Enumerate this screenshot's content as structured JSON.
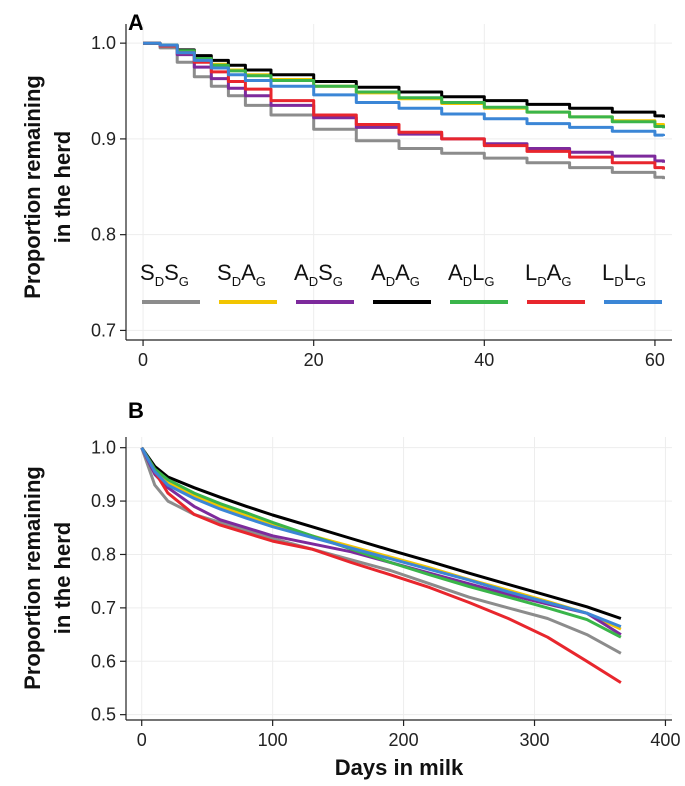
{
  "chart_data": [
    {
      "panel_label": "A",
      "type": "line",
      "ylabel_line1": "Proportion remaining",
      "ylabel_line2": "in the herd",
      "xlabel": "",
      "xlim": [
        -2,
        62
      ],
      "ylim": [
        0.69,
        1.02
      ],
      "xticks": [
        0,
        20,
        40,
        60
      ],
      "yticks": [
        0.7,
        0.8,
        0.9,
        1.0
      ],
      "xtick_labels": [
        "0",
        "20",
        "40",
        "60"
      ],
      "ytick_labels": [
        "0.7",
        "0.8",
        "0.9",
        "1.0"
      ],
      "grid": true,
      "legend_position": "bottom-inside",
      "series": [
        {
          "name": "SDSG",
          "label_parts": [
            "S",
            "D",
            "S",
            "G"
          ],
          "color": "#8c8c8c",
          "x": [
            0,
            2,
            4,
            6,
            8,
            10,
            12,
            15,
            20,
            25,
            30,
            35,
            40,
            45,
            50,
            55,
            60,
            61
          ],
          "y": [
            1.0,
            0.995,
            0.98,
            0.965,
            0.955,
            0.945,
            0.935,
            0.925,
            0.91,
            0.898,
            0.89,
            0.885,
            0.88,
            0.875,
            0.87,
            0.865,
            0.86,
            0.858
          ]
        },
        {
          "name": "SDAG",
          "label_parts": [
            "S",
            "D",
            "A",
            "G"
          ],
          "color": "#f2c500",
          "x": [
            0,
            2,
            4,
            6,
            8,
            10,
            12,
            15,
            20,
            25,
            30,
            35,
            40,
            45,
            50,
            55,
            60,
            61
          ],
          "y": [
            1.0,
            0.998,
            0.992,
            0.985,
            0.978,
            0.972,
            0.967,
            0.962,
            0.955,
            0.948,
            0.942,
            0.937,
            0.932,
            0.928,
            0.923,
            0.919,
            0.915,
            0.913
          ]
        },
        {
          "name": "ADSG",
          "label_parts": [
            "A",
            "D",
            "S",
            "G"
          ],
          "color": "#7d2a9c",
          "x": [
            0,
            2,
            4,
            6,
            8,
            10,
            12,
            15,
            20,
            25,
            30,
            35,
            40,
            45,
            50,
            55,
            60,
            61
          ],
          "y": [
            1.0,
            0.997,
            0.988,
            0.975,
            0.963,
            0.953,
            0.945,
            0.935,
            0.922,
            0.912,
            0.905,
            0.9,
            0.895,
            0.89,
            0.886,
            0.882,
            0.877,
            0.875
          ]
        },
        {
          "name": "ADAG",
          "label_parts": [
            "A",
            "D",
            "A",
            "G"
          ],
          "color": "#000000",
          "x": [
            0,
            2,
            4,
            6,
            8,
            10,
            12,
            15,
            20,
            25,
            30,
            35,
            40,
            45,
            50,
            55,
            60,
            61
          ],
          "y": [
            1.0,
            0.998,
            0.993,
            0.987,
            0.982,
            0.977,
            0.972,
            0.967,
            0.96,
            0.954,
            0.949,
            0.944,
            0.94,
            0.936,
            0.932,
            0.928,
            0.924,
            0.922
          ]
        },
        {
          "name": "ADLG",
          "label_parts": [
            "A",
            "D",
            "L",
            "G"
          ],
          "color": "#3ab54a",
          "x": [
            0,
            2,
            4,
            6,
            8,
            10,
            12,
            15,
            20,
            25,
            30,
            35,
            40,
            45,
            50,
            55,
            60,
            61
          ],
          "y": [
            1.0,
            0.998,
            0.992,
            0.984,
            0.977,
            0.971,
            0.966,
            0.961,
            0.955,
            0.949,
            0.943,
            0.938,
            0.933,
            0.928,
            0.923,
            0.918,
            0.913,
            0.911
          ]
        },
        {
          "name": "LDAG",
          "label_parts": [
            "L",
            "D",
            "A",
            "G"
          ],
          "color": "#e8262d",
          "x": [
            0,
            2,
            4,
            6,
            8,
            10,
            12,
            15,
            20,
            25,
            30,
            35,
            40,
            45,
            50,
            55,
            60,
            61
          ],
          "y": [
            1.0,
            0.997,
            0.99,
            0.98,
            0.97,
            0.96,
            0.952,
            0.94,
            0.925,
            0.915,
            0.907,
            0.9,
            0.893,
            0.887,
            0.881,
            0.875,
            0.87,
            0.868
          ]
        },
        {
          "name": "LDLG",
          "label_parts": [
            "L",
            "D",
            "L",
            "G"
          ],
          "color": "#3b86d6",
          "x": [
            0,
            2,
            4,
            6,
            8,
            10,
            12,
            15,
            20,
            25,
            30,
            35,
            40,
            45,
            50,
            55,
            60,
            61
          ],
          "y": [
            1.0,
            0.998,
            0.99,
            0.982,
            0.974,
            0.967,
            0.961,
            0.955,
            0.946,
            0.938,
            0.932,
            0.926,
            0.921,
            0.916,
            0.912,
            0.908,
            0.904,
            0.903
          ]
        }
      ]
    },
    {
      "panel_label": "B",
      "type": "line",
      "ylabel_line1": "Proportion remaining",
      "ylabel_line2": "in the herd",
      "xlabel": "Days in milk",
      "xlim": [
        -12,
        405
      ],
      "ylim": [
        0.49,
        1.02
      ],
      "xticks": [
        0,
        100,
        200,
        300,
        400
      ],
      "yticks": [
        0.5,
        0.6,
        0.7,
        0.8,
        0.9,
        1.0
      ],
      "xtick_labels": [
        "0",
        "100",
        "200",
        "300",
        "400"
      ],
      "ytick_labels": [
        "0.5",
        "0.6",
        "0.7",
        "0.8",
        "0.9",
        "1.0"
      ],
      "grid": true,
      "series": [
        {
          "name": "SDSG",
          "color": "#8c8c8c",
          "x": [
            0,
            10,
            20,
            40,
            60,
            80,
            100,
            130,
            160,
            190,
            220,
            250,
            280,
            310,
            340,
            366
          ],
          "y": [
            1.0,
            0.93,
            0.9,
            0.875,
            0.86,
            0.845,
            0.83,
            0.81,
            0.79,
            0.77,
            0.745,
            0.72,
            0.7,
            0.68,
            0.65,
            0.615
          ]
        },
        {
          "name": "SDAG",
          "color": "#f2c500",
          "x": [
            0,
            10,
            20,
            40,
            60,
            80,
            100,
            130,
            160,
            190,
            220,
            250,
            280,
            310,
            340,
            366
          ],
          "y": [
            1.0,
            0.96,
            0.935,
            0.91,
            0.89,
            0.872,
            0.855,
            0.835,
            0.815,
            0.795,
            0.775,
            0.753,
            0.733,
            0.712,
            0.69,
            0.66
          ]
        },
        {
          "name": "ADSG",
          "color": "#7d2a9c",
          "x": [
            0,
            10,
            20,
            40,
            60,
            80,
            100,
            130,
            160,
            190,
            220,
            250,
            280,
            310,
            340,
            366
          ],
          "y": [
            1.0,
            0.95,
            0.925,
            0.89,
            0.865,
            0.85,
            0.835,
            0.82,
            0.805,
            0.785,
            0.765,
            0.745,
            0.725,
            0.707,
            0.69,
            0.65
          ]
        },
        {
          "name": "ADAG",
          "color": "#000000",
          "x": [
            0,
            10,
            20,
            40,
            60,
            80,
            100,
            130,
            160,
            190,
            220,
            250,
            280,
            310,
            340,
            366
          ],
          "y": [
            1.0,
            0.965,
            0.945,
            0.925,
            0.907,
            0.89,
            0.874,
            0.852,
            0.83,
            0.808,
            0.787,
            0.765,
            0.744,
            0.723,
            0.702,
            0.68
          ]
        },
        {
          "name": "ADLG",
          "color": "#3ab54a",
          "x": [
            0,
            10,
            20,
            40,
            60,
            80,
            100,
            130,
            160,
            190,
            220,
            250,
            280,
            310,
            340,
            366
          ],
          "y": [
            1.0,
            0.96,
            0.94,
            0.915,
            0.895,
            0.878,
            0.86,
            0.835,
            0.81,
            0.785,
            0.762,
            0.74,
            0.72,
            0.7,
            0.678,
            0.645
          ]
        },
        {
          "name": "LDAG",
          "color": "#e8262d",
          "x": [
            0,
            10,
            20,
            40,
            60,
            80,
            100,
            130,
            160,
            190,
            220,
            250,
            280,
            310,
            340,
            366
          ],
          "y": [
            1.0,
            0.955,
            0.915,
            0.875,
            0.855,
            0.84,
            0.825,
            0.81,
            0.785,
            0.762,
            0.738,
            0.71,
            0.68,
            0.645,
            0.6,
            0.56
          ]
        },
        {
          "name": "LDLG",
          "color": "#3b86d6",
          "x": [
            0,
            10,
            20,
            40,
            60,
            80,
            100,
            130,
            160,
            190,
            220,
            250,
            280,
            310,
            340,
            366
          ],
          "y": [
            1.0,
            0.955,
            0.93,
            0.905,
            0.885,
            0.868,
            0.852,
            0.832,
            0.812,
            0.792,
            0.772,
            0.752,
            0.73,
            0.71,
            0.69,
            0.665
          ]
        }
      ]
    }
  ]
}
